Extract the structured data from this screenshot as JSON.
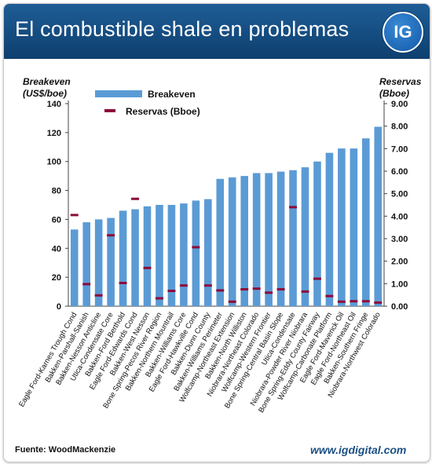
{
  "header": {
    "title": "El combustible shale en problemas",
    "logo_text": "IG"
  },
  "footer": {
    "source": "Fuente: WoodMackenzie",
    "site": "www.igdigital.com"
  },
  "colors": {
    "header": "#17508a",
    "bar": "#5b9bd5",
    "marker": "#8b0a3a"
  },
  "chart_data": {
    "type": "bar",
    "ylabel_left_line1": "Breakeven",
    "ylabel_left_line2": "(US$/boe)",
    "ylabel_right_line1": "Reservas",
    "ylabel_right_line2": "(Bboe)",
    "legend": {
      "bar": "Breakeven",
      "marker": "Reservas (Bboe)"
    },
    "ylim_left": [
      0,
      140
    ],
    "ylim_right": [
      0,
      9
    ],
    "yticks_left": [
      "0",
      "20",
      "40",
      "60",
      "80",
      "100",
      "120",
      "140"
    ],
    "yticks_right": [
      "0.00",
      "1.00",
      "2.00",
      "3.00",
      "4.00",
      "5.00",
      "6.00",
      "7.00",
      "8.00",
      "9.00"
    ],
    "categories": [
      "Eagle Ford-Karnes Trough Cond",
      "Bakken-Parshall-Sanish",
      "Bakken-Nesson Anticline",
      "Utica-Condensate Core",
      "Bakken-Ford Berthold",
      "Eagle Ford-Edwards Cond",
      "Bakken-West Nesson",
      "Bone Spring-Pecos River Region",
      "Bakken-Northern Mountrail",
      "Bakken-Williams Core",
      "Eagle Ford-Hawkville Cond",
      "Bakken-Dunn County",
      "Bakken-Williams Perimeter",
      "Wolfcamp-Northeast Extension",
      "Bakken-North Williston",
      "Niobrara-Northeast Colorado",
      "Wolfcamp-Western Frontier",
      "Bone Spring-Central Basin Slope",
      "Utica-Condensate",
      "Niobrara-Powder River Niobrara",
      "Bone Spring-Eddy County Fairway",
      "Wolfcamp-Carbonate Platform",
      "Eagle Ford-Maverick Oil",
      "Eagle Ford-Northeast Oil",
      "Bakken-Southern Fringe",
      "Niobrara-Northwest Colorado"
    ],
    "series": [
      {
        "name": "Breakeven",
        "axis": "left",
        "values": [
          53,
          58,
          60,
          61,
          66,
          67,
          69,
          70,
          70,
          71,
          73,
          74,
          88,
          89,
          90,
          92,
          92,
          93,
          94,
          96,
          100,
          106,
          109,
          109,
          116,
          124
        ]
      },
      {
        "name": "Reservas (Bboe)",
        "axis": "right",
        "values": [
          4.05,
          0.98,
          0.48,
          3.15,
          1.03,
          4.77,
          1.7,
          0.35,
          0.68,
          0.92,
          2.62,
          0.92,
          0.7,
          0.2,
          0.75,
          0.78,
          0.6,
          0.75,
          4.4,
          0.65,
          1.22,
          0.45,
          0.2,
          0.22,
          0.22,
          0.16
        ]
      }
    ]
  }
}
